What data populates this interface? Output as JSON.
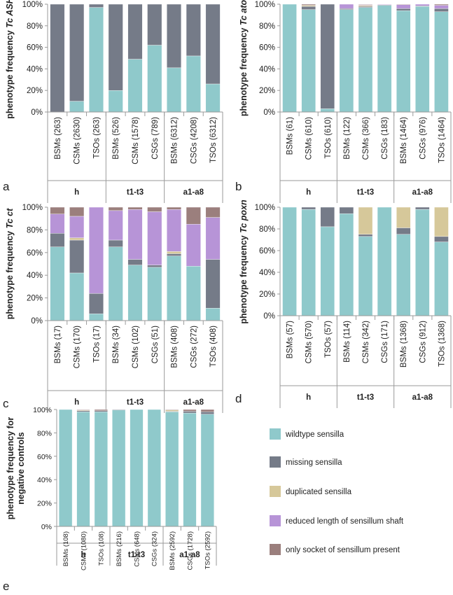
{
  "colors": {
    "wildtype": "#8fc9cb",
    "missing": "#757b88",
    "duplicated": "#d6c89a",
    "reduced": "#b794d7",
    "socket": "#9b7f7d"
  },
  "legend": [
    {
      "key": "wildtype",
      "label": "wildtype sensilla"
    },
    {
      "key": "missing",
      "label": "missing sensilla"
    },
    {
      "key": "duplicated",
      "label": "duplicated sensilla"
    },
    {
      "key": "reduced",
      "label": "reduced length of sensillum shaft"
    },
    {
      "key": "socket",
      "label": "only socket of sensillum present"
    }
  ],
  "chart_data": [
    {
      "type": "bar",
      "stacked": true,
      "panel_letter": "a",
      "ylabel": "phenotype frequency",
      "ylabel_gene": "Tc ASH",
      "ylim": [
        0,
        100
      ],
      "ytick_labels": [
        "0%",
        "20%",
        "40%",
        "60%",
        "80%",
        "100%"
      ],
      "categories": [
        "BSMs (263)",
        "CSMs (2630)",
        "TSOs (263)",
        "BSMs (526)",
        "CSMs (1578)",
        "CSGs (789)",
        "BSMs (6312)",
        "CSGs (4208)",
        "TSOs (6312)"
      ],
      "groups": [
        {
          "label": "h",
          "count": 3
        },
        {
          "label": "t1-t3",
          "count": 3
        },
        {
          "label": "a1-a8",
          "count": 3
        }
      ],
      "series": [
        {
          "key": "wildtype",
          "values": [
            0,
            10,
            97,
            20,
            49,
            62,
            41,
            52,
            26
          ]
        },
        {
          "key": "missing",
          "values": [
            100,
            90,
            3,
            80,
            51,
            38,
            59,
            48,
            74
          ]
        },
        {
          "key": "duplicated",
          "values": [
            0,
            0,
            0,
            0,
            0,
            0,
            0,
            0,
            0
          ]
        },
        {
          "key": "reduced",
          "values": [
            0,
            0,
            0,
            0,
            0,
            0,
            0,
            0,
            0
          ]
        },
        {
          "key": "socket",
          "values": [
            0,
            0,
            0,
            0,
            0,
            0,
            0,
            0,
            0
          ]
        }
      ]
    },
    {
      "type": "bar",
      "stacked": true,
      "panel_letter": "b",
      "ylabel": "phenotype frequency",
      "ylabel_gene": "Tc ato",
      "ylim": [
        0,
        100
      ],
      "ytick_labels": [
        "0%",
        "20%",
        "40%",
        "60%",
        "80%",
        "100%"
      ],
      "categories": [
        "BSMs (61)",
        "CSMs (610)",
        "TSOs (610)",
        "BSMs (122)",
        "CSMs (366)",
        "CSGs (183)",
        "BSMs (1464)",
        "CSGs (976)",
        "TSOs (1464)"
      ],
      "groups": [
        {
          "label": "h",
          "count": 3
        },
        {
          "label": "t1-t3",
          "count": 3
        },
        {
          "label": "a1-a8",
          "count": 3
        }
      ],
      "series": [
        {
          "key": "wildtype",
          "values": [
            100,
            95,
            3,
            95,
            97,
            99,
            94,
            98,
            93
          ]
        },
        {
          "key": "missing",
          "values": [
            0,
            3,
            97,
            1,
            1,
            0.5,
            2,
            0.5,
            3
          ]
        },
        {
          "key": "duplicated",
          "values": [
            0,
            1,
            0,
            0,
            1,
            0,
            0,
            0,
            0
          ]
        },
        {
          "key": "reduced",
          "values": [
            0,
            0,
            0,
            4,
            0.5,
            0.5,
            3.5,
            1.5,
            3
          ]
        },
        {
          "key": "socket",
          "values": [
            0,
            1,
            0,
            0,
            0.5,
            0,
            0.5,
            0,
            1
          ]
        }
      ]
    },
    {
      "type": "bar",
      "stacked": true,
      "panel_letter": "c",
      "ylabel": "phenotype frequency",
      "ylabel_gene": "Tc ct",
      "ylim": [
        0,
        100
      ],
      "ytick_labels": [
        "0%",
        "20%",
        "40%",
        "60%",
        "80%",
        "100%"
      ],
      "categories": [
        "BSMs (17)",
        "CSMs (170)",
        "TSOs (17)",
        "BSMs (34)",
        "CSMs (102)",
        "CSGs (51)",
        "BSMs (408)",
        "CSGs (272)",
        "TSOs (408)"
      ],
      "groups": [
        {
          "label": "h",
          "count": 3
        },
        {
          "label": "t1-t3",
          "count": 3
        },
        {
          "label": "a1-a8",
          "count": 3
        }
      ],
      "series": [
        {
          "key": "wildtype",
          "values": [
            65,
            42,
            6,
            65,
            49,
            47,
            57,
            48,
            11
          ]
        },
        {
          "key": "missing",
          "values": [
            12,
            29,
            18,
            6,
            5,
            2,
            2,
            0,
            43
          ]
        },
        {
          "key": "duplicated",
          "values": [
            0,
            2,
            0,
            0,
            0,
            0,
            2,
            0,
            0
          ]
        },
        {
          "key": "reduced",
          "values": [
            17,
            19,
            76,
            26,
            44,
            47,
            37,
            37,
            37
          ]
        },
        {
          "key": "socket",
          "values": [
            6,
            8,
            0,
            3,
            2,
            4,
            2,
            15,
            9
          ]
        }
      ]
    },
    {
      "type": "bar",
      "stacked": true,
      "panel_letter": "d",
      "ylabel": "phenotype frequency",
      "ylabel_gene": "Tc poxn",
      "ylim": [
        0,
        100
      ],
      "ytick_labels": [
        "0%",
        "20%",
        "40%",
        "60%",
        "80%",
        "100%"
      ],
      "categories": [
        "BSMs (57)",
        "CSMs (570)",
        "TSOs (57)",
        "BSMs (114)",
        "CSMs (342)",
        "CSGs (171)",
        "BSMs (1368)",
        "CSGs (912)",
        "TSOs (1368)"
      ],
      "groups": [
        {
          "label": "h",
          "count": 3
        },
        {
          "label": "t1-t3",
          "count": 3
        },
        {
          "label": "a1-a8",
          "count": 3
        }
      ],
      "series": [
        {
          "key": "wildtype",
          "values": [
            100,
            98,
            82,
            94,
            73,
            100,
            75,
            98,
            68
          ]
        },
        {
          "key": "missing",
          "values": [
            0,
            2,
            18,
            6,
            2,
            0,
            6,
            2,
            5
          ]
        },
        {
          "key": "duplicated",
          "values": [
            0,
            0,
            0,
            0,
            25,
            0,
            19,
            0,
            27
          ]
        },
        {
          "key": "reduced",
          "values": [
            0,
            0,
            0,
            0,
            0,
            0,
            0,
            0,
            0
          ]
        },
        {
          "key": "socket",
          "values": [
            0,
            0,
            0,
            0,
            0,
            0,
            0,
            0,
            0
          ]
        }
      ]
    },
    {
      "type": "bar",
      "stacked": true,
      "panel_letter": "e",
      "ylabel": "phenotype frequency for",
      "ylabel_line2": "negative controls",
      "ylim": [
        0,
        100
      ],
      "ytick_labels": [
        "0%",
        "20%",
        "40%",
        "60%",
        "80%",
        "100%"
      ],
      "categories": [
        "BSMs (108)",
        "CSMs (1080)",
        "TSOs (108)",
        "BSMs (216)",
        "CSMs (648)",
        "CSGs (324)",
        "BSMs (2592)",
        "CSGs (1728)",
        "TSOs (2592)"
      ],
      "groups": [
        {
          "label": "h",
          "count": 3
        },
        {
          "label": "t1-t3",
          "count": 3
        },
        {
          "label": "a1-a8",
          "count": 3
        }
      ],
      "series": [
        {
          "key": "wildtype",
          "values": [
            100,
            98,
            98,
            99.5,
            100,
            100,
            98,
            97,
            96
          ]
        },
        {
          "key": "missing",
          "values": [
            0,
            1,
            1,
            0.5,
            0,
            0,
            0.5,
            1.5,
            2
          ]
        },
        {
          "key": "duplicated",
          "values": [
            0,
            0.5,
            0,
            0,
            0,
            0,
            1,
            0,
            0
          ]
        },
        {
          "key": "reduced",
          "values": [
            0,
            0,
            0,
            0,
            0,
            0,
            0,
            0,
            0
          ]
        },
        {
          "key": "socket",
          "values": [
            0,
            0.5,
            1,
            0,
            0,
            0,
            0.5,
            1.5,
            2
          ]
        }
      ]
    }
  ]
}
